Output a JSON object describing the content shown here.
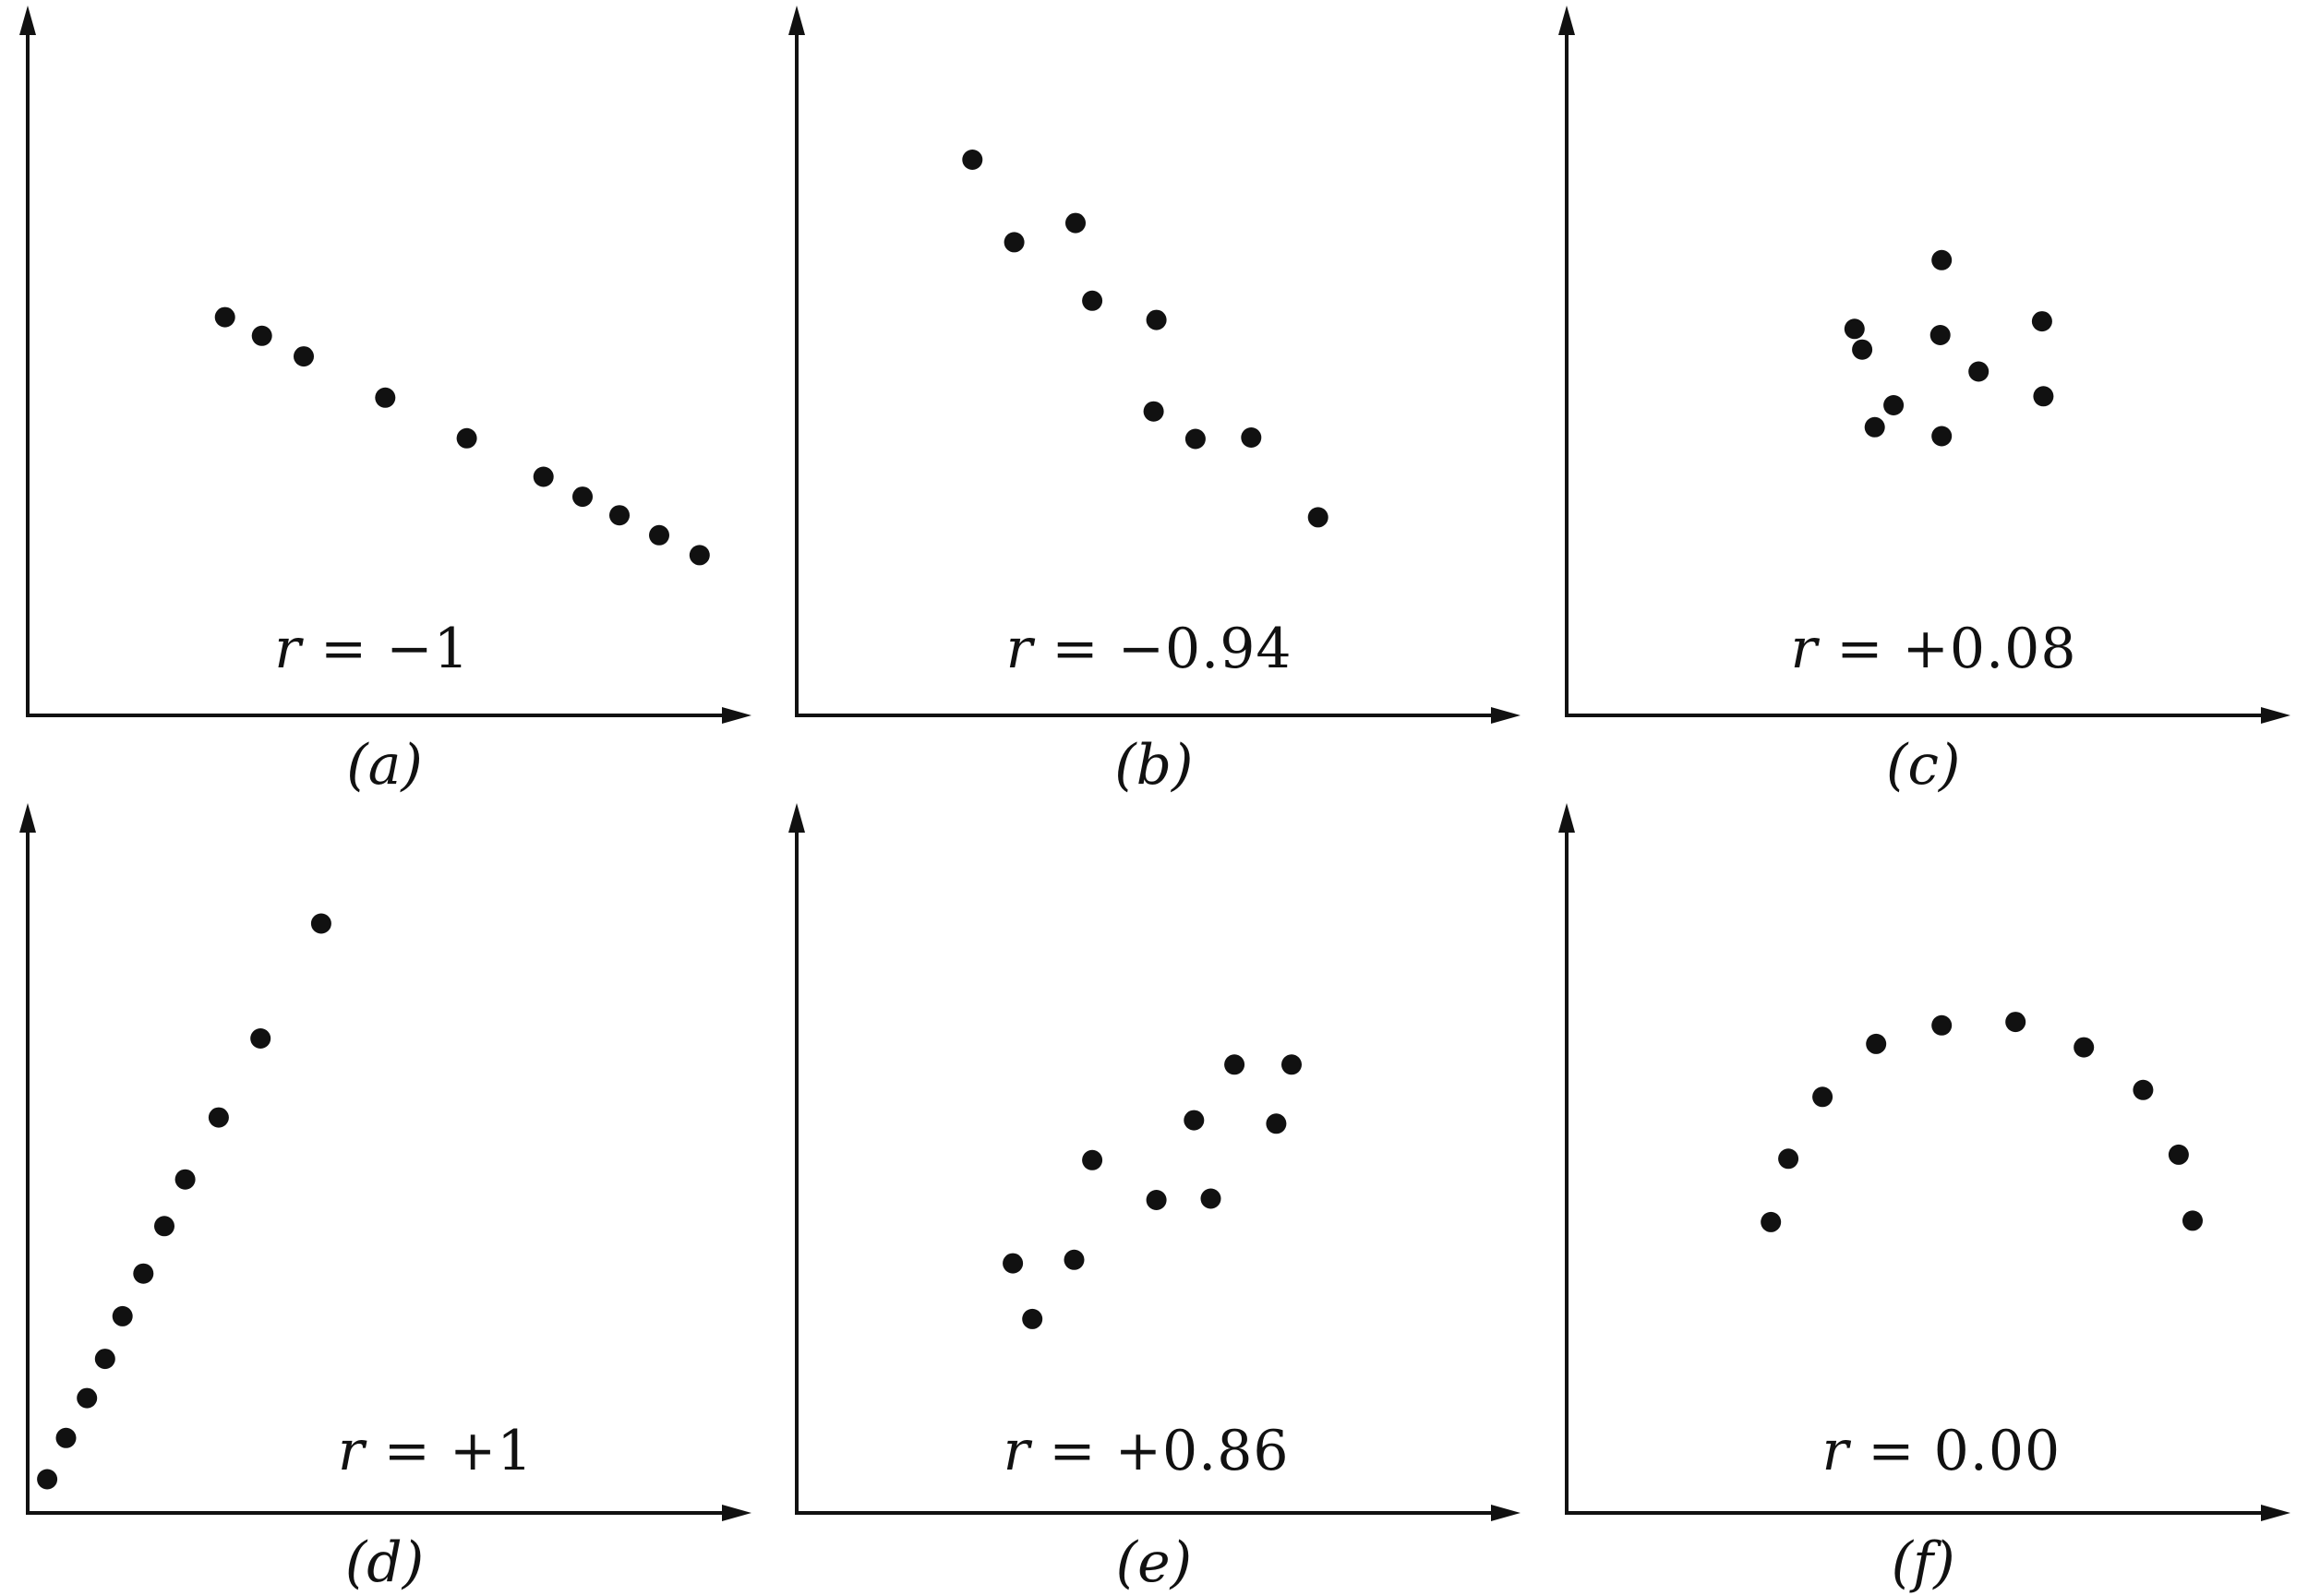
{
  "figure": {
    "background": "#ffffff",
    "axis_color": "#111111",
    "dot_color": "#111111",
    "description": "Six scatterplots illustrating different correlation coefficient values"
  },
  "chart_data": [
    {
      "type": "scatter",
      "panel_id": "a",
      "caption": "(a)",
      "label_var": "r",
      "label_rest": " = −1",
      "r_value": -1,
      "label_x": 0.494,
      "label_y": 0.096,
      "xlim": [
        0,
        1
      ],
      "ylim": [
        0,
        1
      ],
      "grid": false,
      "units": "axis-fraction",
      "points": [
        [
          0.283,
          0.579
        ],
        [
          0.336,
          0.552
        ],
        [
          0.396,
          0.522
        ],
        [
          0.513,
          0.462
        ],
        [
          0.63,
          0.403
        ],
        [
          0.74,
          0.347
        ],
        [
          0.796,
          0.318
        ],
        [
          0.849,
          0.291
        ],
        [
          0.906,
          0.262
        ],
        [
          0.964,
          0.233
        ]
      ]
    },
    {
      "type": "scatter",
      "panel_id": "b",
      "caption": "(b)",
      "label_var": "r",
      "label_rest": " = −0.94",
      "r_value": -0.94,
      "label_x": 0.505,
      "label_y": 0.096,
      "xlim": [
        0,
        1
      ],
      "ylim": [
        0,
        1
      ],
      "grid": false,
      "units": "axis-fraction",
      "points": [
        [
          0.252,
          0.808
        ],
        [
          0.312,
          0.688
        ],
        [
          0.4,
          0.716
        ],
        [
          0.424,
          0.603
        ],
        [
          0.516,
          0.575
        ],
        [
          0.512,
          0.442
        ],
        [
          0.572,
          0.402
        ],
        [
          0.652,
          0.404
        ],
        [
          0.748,
          0.288
        ]
      ]
    },
    {
      "type": "scatter",
      "panel_id": "c",
      "caption": "(c)",
      "label_var": "r",
      "label_rest": " = +0.08",
      "r_value": 0.08,
      "label_x": 0.527,
      "label_y": 0.096,
      "xlim": [
        0,
        1
      ],
      "ylim": [
        0,
        1
      ],
      "grid": false,
      "units": "axis-fraction",
      "points": [
        [
          0.538,
          0.662
        ],
        [
          0.413,
          0.562
        ],
        [
          0.424,
          0.532
        ],
        [
          0.536,
          0.553
        ],
        [
          0.682,
          0.573
        ],
        [
          0.591,
          0.5
        ],
        [
          0.684,
          0.464
        ],
        [
          0.469,
          0.451
        ],
        [
          0.442,
          0.419
        ],
        [
          0.538,
          0.406
        ]
      ]
    },
    {
      "type": "scatter",
      "panel_id": "d",
      "caption": "(d)",
      "label_var": "r",
      "label_rest": " = +1",
      "r_value": 1,
      "label_x": 0.585,
      "label_y": 0.09,
      "xlim": [
        0,
        1
      ],
      "ylim": [
        0,
        1
      ],
      "grid": false,
      "units": "axis-fraction",
      "points": [
        [
          0.028,
          0.049
        ],
        [
          0.055,
          0.109
        ],
        [
          0.085,
          0.167
        ],
        [
          0.111,
          0.224
        ],
        [
          0.136,
          0.286
        ],
        [
          0.166,
          0.348
        ],
        [
          0.196,
          0.417
        ],
        [
          0.226,
          0.485
        ],
        [
          0.274,
          0.575
        ],
        [
          0.334,
          0.69
        ],
        [
          0.421,
          0.857
        ]
      ]
    },
    {
      "type": "scatter",
      "panel_id": "e",
      "caption": "(e)",
      "label_var": "r",
      "label_rest": " = +0.86",
      "r_value": 0.86,
      "label_x": 0.501,
      "label_y": 0.09,
      "xlim": [
        0,
        1
      ],
      "ylim": [
        0,
        1
      ],
      "grid": false,
      "units": "axis-fraction",
      "points": [
        [
          0.31,
          0.363
        ],
        [
          0.398,
          0.368
        ],
        [
          0.338,
          0.282
        ],
        [
          0.424,
          0.513
        ],
        [
          0.516,
          0.455
        ],
        [
          0.594,
          0.457
        ],
        [
          0.57,
          0.571
        ],
        [
          0.628,
          0.652
        ],
        [
          0.688,
          0.566
        ],
        [
          0.71,
          0.652
        ]
      ]
    },
    {
      "type": "scatter",
      "panel_id": "f",
      "caption": "(f)",
      "label_var": "r",
      "label_rest": " = 0.00",
      "r_value": 0,
      "label_x": 0.538,
      "label_y": 0.09,
      "xlim": [
        0,
        1
      ],
      "ylim": [
        0,
        1
      ],
      "grid": false,
      "units": "axis-fraction",
      "points": [
        [
          0.293,
          0.423
        ],
        [
          0.318,
          0.515
        ],
        [
          0.367,
          0.605
        ],
        [
          0.444,
          0.682
        ],
        [
          0.538,
          0.709
        ],
        [
          0.644,
          0.714
        ],
        [
          0.742,
          0.677
        ],
        [
          0.827,
          0.615
        ],
        [
          0.878,
          0.521
        ],
        [
          0.898,
          0.425
        ]
      ]
    }
  ]
}
